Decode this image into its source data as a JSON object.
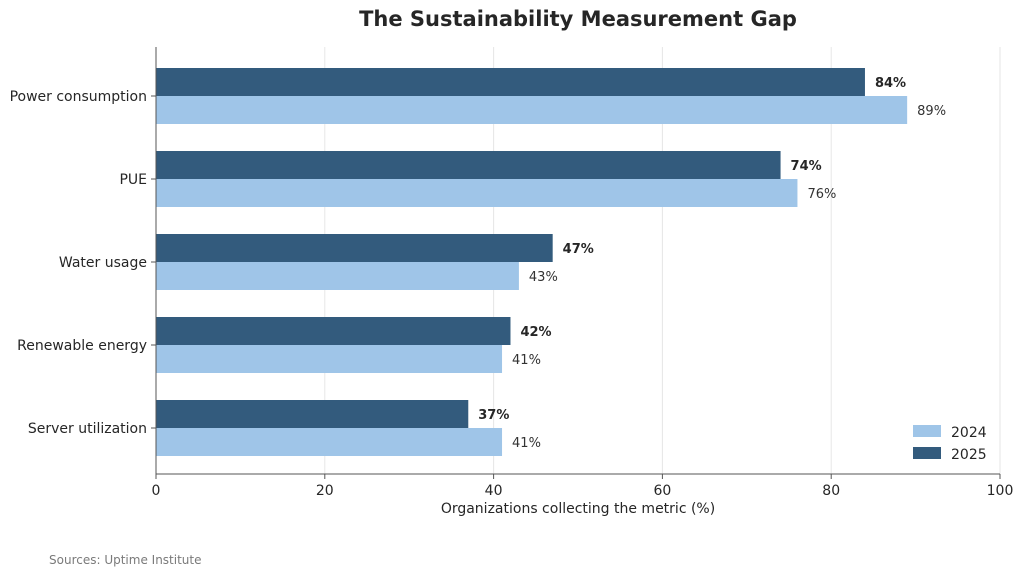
{
  "source_note": "Sources: Uptime Institute",
  "colors": {
    "series_2024": "#9fc5e8",
    "series_2025": "#335b7d",
    "grid": "#e6e6e6",
    "axis": "#555555"
  },
  "chart_data": {
    "type": "bar",
    "orientation": "horizontal",
    "title": "The Sustainability Measurement Gap",
    "xlabel": "Organizations collecting the metric (%)",
    "ylabel": "",
    "xlim": [
      0,
      100
    ],
    "xticks": [
      0,
      20,
      40,
      60,
      80,
      100
    ],
    "grid": "vertical",
    "legend": "bottom-right",
    "categories": [
      "Power consumption",
      "PUE",
      "Water usage",
      "Renewable energy",
      "Server utilization"
    ],
    "series": [
      {
        "name": "2025",
        "values": [
          84,
          74,
          47,
          42,
          37
        ],
        "labels": [
          "84%",
          "74%",
          "47%",
          "42%",
          "37%"
        ]
      },
      {
        "name": "2024",
        "values": [
          89,
          76,
          43,
          41,
          41
        ],
        "labels": [
          "89%",
          "76%",
          "43%",
          "41%",
          "41%"
        ]
      }
    ]
  }
}
